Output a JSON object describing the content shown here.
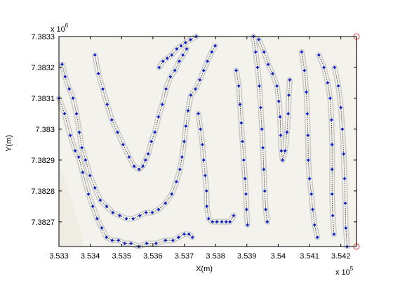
{
  "chart_data": {
    "type": "scatter",
    "title": "",
    "xlabel": "X(m)",
    "ylabel": "Y(m)",
    "x_multiplier_base": "x 10",
    "x_multiplier_exp": "5",
    "y_multiplier_base": "x 10",
    "y_multiplier_exp": "6",
    "xlim": [
      3.533,
      3.5425
    ],
    "ylim": [
      7.38262,
      7.3833
    ],
    "x_ticks": [
      3.533,
      3.534,
      3.535,
      3.536,
      3.537,
      3.538,
      3.539,
      3.54,
      3.541,
      3.542
    ],
    "x_tick_labels": [
      "3.533",
      "3.534",
      "3.535",
      "3.536",
      "3.537",
      "3.538",
      "3.539",
      "3.54",
      "3.541",
      "3.542"
    ],
    "y_ticks": [
      7.3827,
      7.3828,
      7.3829,
      7.383,
      7.3831,
      7.3832,
      7.3833
    ],
    "y_tick_labels": [
      "7.3827",
      "7.3828",
      "7.3829",
      "7.383",
      "7.3831",
      "7.3832",
      "7.3833"
    ],
    "grid": false,
    "colors": {
      "background": "#f4f2ec",
      "terrain_light": "#efece4",
      "corridor": "#c9c9c9",
      "points": "#0a1ecf",
      "links": "#222222",
      "marker_line": "#e53030"
    },
    "series": [
      {
        "values": [
          [
            3.533,
            7.3831
          ],
          [
            3.53318,
            7.38305
          ],
          [
            3.53336,
            7.38298
          ],
          [
            3.53352,
            7.38293
          ],
          [
            3.53363,
            7.38291
          ],
          [
            3.53376,
            7.38286
          ],
          [
            3.53394,
            7.38279
          ],
          [
            3.53408,
            7.38275
          ],
          [
            3.53422,
            7.38271
          ],
          [
            3.53437,
            7.38268
          ],
          [
            3.53452,
            7.38265
          ],
          [
            3.5347,
            7.38264
          ],
          [
            3.5349,
            7.38264
          ],
          [
            3.5351,
            7.38263
          ],
          [
            3.5353,
            7.38263
          ],
          [
            3.53555,
            7.38262
          ],
          [
            3.5358,
            7.38263
          ],
          [
            3.5361,
            7.38263
          ],
          [
            3.5364,
            7.38264
          ],
          [
            3.53664,
            7.38264
          ],
          [
            3.53682,
            7.38265
          ],
          [
            3.537,
            7.38266
          ],
          [
            3.53715,
            7.38266
          ],
          [
            3.53726,
            7.38265
          ]
        ]
      },
      {
        "values": [
          [
            3.5331,
            7.38321
          ],
          [
            3.5332,
            7.38317
          ],
          [
            3.53333,
            7.38313
          ],
          [
            3.53345,
            7.3831
          ],
          [
            3.53356,
            7.38305
          ],
          [
            3.53365,
            7.38299
          ],
          [
            3.53373,
            7.38294
          ],
          [
            3.53385,
            7.3829
          ],
          [
            3.53399,
            7.38285
          ],
          [
            3.53415,
            7.38281
          ],
          [
            3.53432,
            7.38277
          ],
          [
            3.53452,
            7.38275
          ],
          [
            3.53472,
            7.38273
          ],
          [
            3.53494,
            7.38272
          ],
          [
            3.53515,
            7.38271
          ],
          [
            3.53537,
            7.38271
          ],
          [
            3.53558,
            7.38272
          ],
          [
            3.53578,
            7.38273
          ],
          [
            3.53598,
            7.38273
          ],
          [
            3.53618,
            7.38274
          ],
          [
            3.5364,
            7.38276
          ],
          [
            3.5366,
            7.38279
          ],
          [
            3.53675,
            7.38283
          ],
          [
            3.53686,
            7.38287
          ],
          [
            3.53693,
            7.38291
          ],
          [
            3.537,
            7.38296
          ],
          [
            3.53705,
            7.38301
          ],
          [
            3.53712,
            7.38306
          ],
          [
            3.53721,
            7.38311
          ],
          [
            3.53736,
            7.38313
          ],
          [
            3.5375,
            7.38316
          ],
          [
            3.53762,
            7.38319
          ],
          [
            3.53774,
            7.38322
          ],
          [
            3.53788,
            7.38325
          ],
          [
            3.53799,
            7.38327
          ]
        ]
      },
      {
        "values": [
          [
            3.53415,
            7.38324
          ],
          [
            3.53426,
            7.38318
          ],
          [
            3.5344,
            7.38313
          ],
          [
            3.53454,
            7.38308
          ],
          [
            3.53469,
            7.38303
          ],
          [
            3.53487,
            7.38299
          ],
          [
            3.53505,
            7.38295
          ],
          [
            3.53524,
            7.38291
          ],
          [
            3.5354,
            7.38288
          ],
          [
            3.53556,
            7.38287
          ],
          [
            3.53568,
            7.38288
          ],
          [
            3.53576,
            7.3829
          ],
          [
            3.53585,
            7.38292
          ],
          [
            3.53595,
            7.38296
          ],
          [
            3.53606,
            7.38299
          ],
          [
            3.53618,
            7.38304
          ],
          [
            3.5363,
            7.38308
          ],
          [
            3.53642,
            7.38313
          ],
          [
            3.53656,
            7.38317
          ],
          [
            3.5367,
            7.38319
          ],
          [
            3.53684,
            7.38322
          ],
          [
            3.53696,
            7.38324
          ],
          [
            3.53708,
            7.38326
          ]
        ]
      },
      {
        "values": [
          [
            3.5362,
            7.3832
          ],
          [
            3.53632,
            7.38322
          ],
          [
            3.53646,
            7.38323
          ],
          [
            3.5366,
            7.38324
          ],
          [
            3.53676,
            7.38326
          ],
          [
            3.5369,
            7.38327
          ],
          [
            3.53704,
            7.38328
          ],
          [
            3.5372,
            7.38329
          ],
          [
            3.53738,
            7.3833
          ]
        ]
      },
      {
        "values": [
          [
            3.53745,
            7.38305
          ],
          [
            3.53752,
            7.383
          ],
          [
            3.53758,
            7.38295
          ],
          [
            3.53762,
            7.3829
          ],
          [
            3.53767,
            7.38285
          ],
          [
            3.53771,
            7.3828
          ],
          [
            3.53772,
            7.38275
          ],
          [
            3.53778,
            7.38271
          ],
          [
            3.5379,
            7.3827
          ],
          [
            3.53804,
            7.3827
          ],
          [
            3.5382,
            7.3827
          ],
          [
            3.53834,
            7.3827
          ],
          [
            3.53846,
            7.3827
          ],
          [
            3.53858,
            7.38272
          ]
        ]
      },
      {
        "values": [
          [
            3.53866,
            7.38319
          ],
          [
            3.53874,
            7.38314
          ],
          [
            3.53878,
            7.38308
          ],
          [
            3.53882,
            7.38302
          ],
          [
            3.53886,
            7.38296
          ],
          [
            3.5389,
            7.3829
          ],
          [
            3.53894,
            7.38284
          ],
          [
            3.53897,
            7.38279
          ],
          [
            3.53899,
            7.38274
          ],
          [
            3.53902,
            7.38269
          ]
        ]
      },
      {
        "values": [
          [
            3.53921,
            7.3833
          ],
          [
            3.53928,
            7.38325
          ],
          [
            3.53934,
            7.3832
          ],
          [
            3.5394,
            7.38314
          ],
          [
            3.53944,
            7.38307
          ],
          [
            3.53948,
            7.383
          ],
          [
            3.53951,
            7.38294
          ],
          [
            3.53954,
            7.38287
          ],
          [
            3.53957,
            7.3828
          ],
          [
            3.5396,
            7.38274
          ],
          [
            3.53965,
            7.3827
          ]
        ]
      },
      {
        "values": [
          [
            3.53938,
            7.38329
          ],
          [
            3.53955,
            7.38325
          ],
          [
            3.53968,
            7.38321
          ],
          [
            3.53982,
            7.38318
          ],
          [
            3.53996,
            7.38314
          ],
          [
            3.54002,
            7.38309
          ],
          [
            3.54006,
            7.38304
          ],
          [
            3.54008,
            7.38298
          ],
          [
            3.5401,
            7.38293
          ],
          [
            3.54014,
            7.3829
          ],
          [
            3.54022,
            7.38293
          ],
          [
            3.54028,
            7.38299
          ],
          [
            3.54032,
            7.38305
          ],
          [
            3.54034,
            7.38311
          ],
          [
            3.54037,
            7.38316
          ]
        ]
      },
      {
        "values": [
          [
            3.54075,
            7.38325
          ],
          [
            3.54084,
            7.38319
          ],
          [
            3.5409,
            7.38312
          ],
          [
            3.54093,
            7.38305
          ],
          [
            3.54095,
            7.38298
          ],
          [
            3.54096,
            7.3829
          ],
          [
            3.541,
            7.38284
          ],
          [
            3.54106,
            7.38279
          ],
          [
            3.5411,
            7.38274
          ],
          [
            3.54116,
            7.38269
          ],
          [
            3.54125,
            7.38265
          ]
        ]
      },
      {
        "values": [
          [
            3.5413,
            7.38324
          ],
          [
            3.54146,
            7.3832
          ],
          [
            3.54158,
            7.38315
          ],
          [
            3.54166,
            7.3831
          ],
          [
            3.5417,
            7.38303
          ],
          [
            3.54172,
            7.38295
          ],
          [
            3.54172,
            7.38287
          ],
          [
            3.54172,
            7.38279
          ],
          [
            3.54174,
            7.38272
          ],
          [
            3.54178,
            7.38266
          ]
        ]
      },
      {
        "values": [
          [
            3.5418,
            7.3832
          ],
          [
            3.54192,
            7.38314
          ],
          [
            3.542,
            7.38307
          ],
          [
            3.54205,
            7.383
          ],
          [
            3.54209,
            7.38292
          ],
          [
            3.54212,
            7.38284
          ],
          [
            3.54214,
            7.38276
          ],
          [
            3.54216,
            7.38268
          ],
          [
            3.5422,
            7.38262
          ]
        ]
      }
    ]
  }
}
